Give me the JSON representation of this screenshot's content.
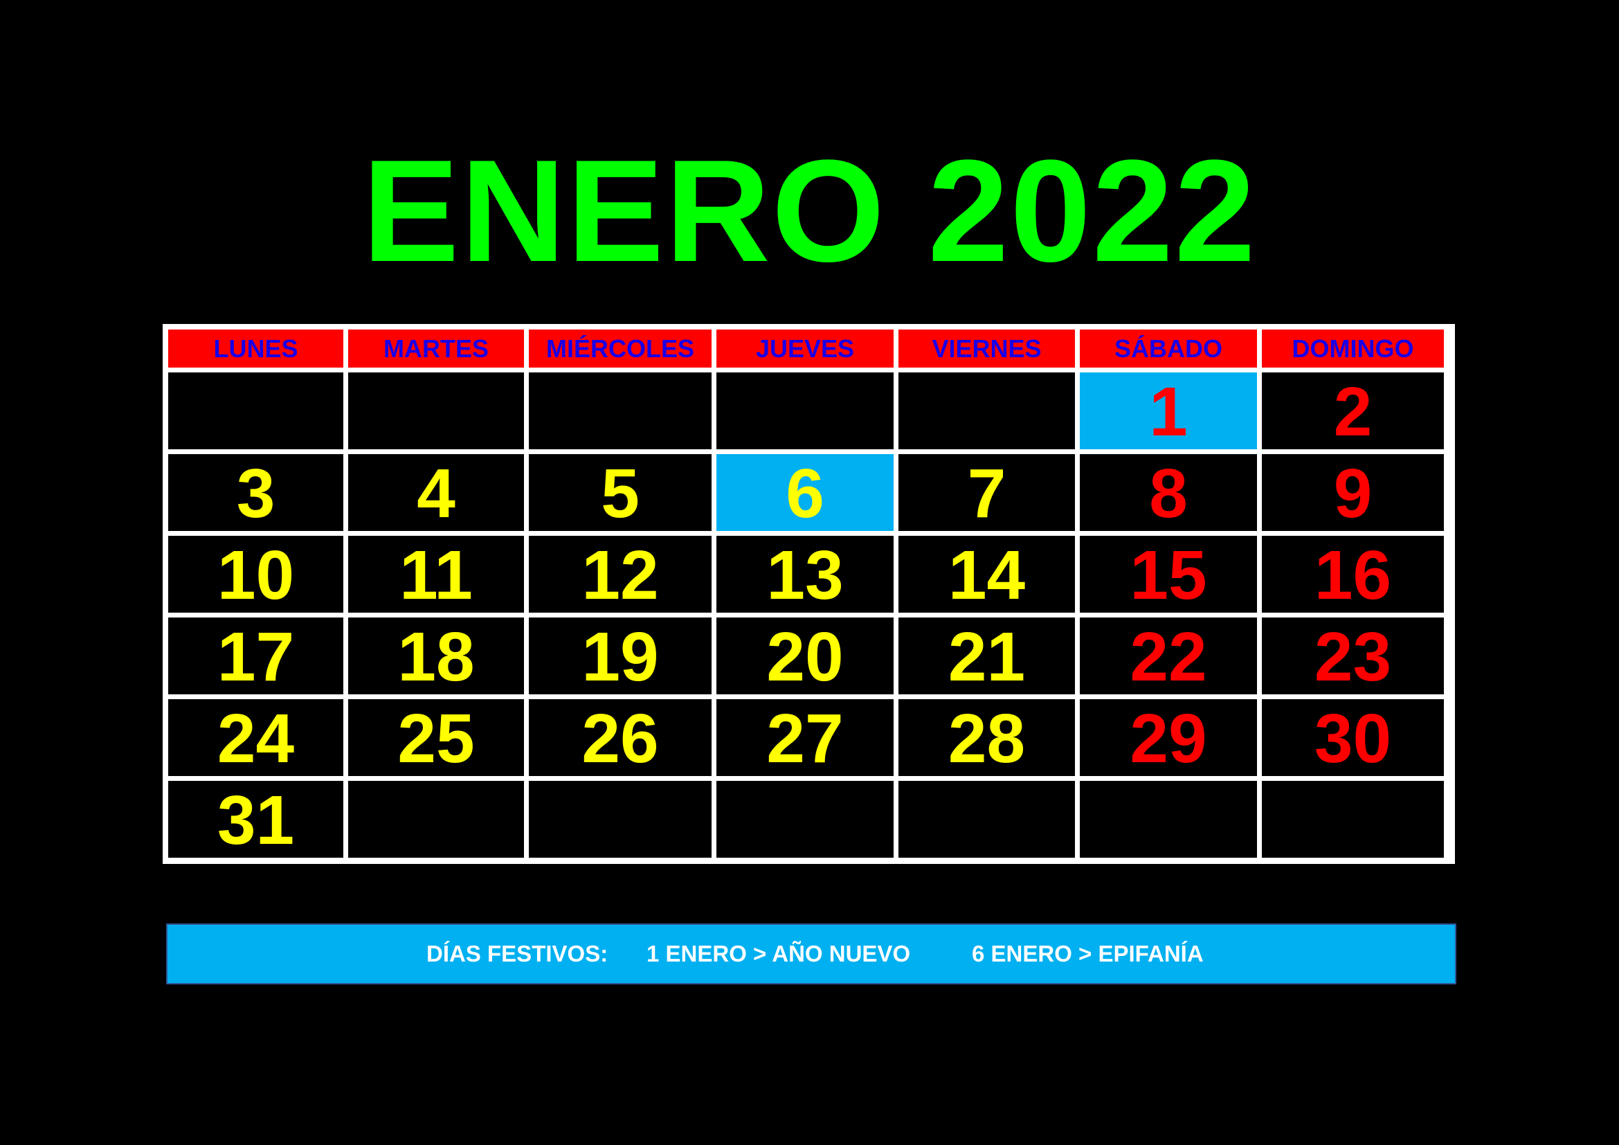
{
  "calendar": {
    "title": "ENERO 2022",
    "weekdays": [
      "LUNES",
      "MARTES",
      "MIÉRCOLES",
      "JUEVES",
      "VIERNES",
      "SÁBADO",
      "DOMINGO"
    ],
    "weeks": [
      [
        "",
        "",
        "",
        "",
        "",
        "1",
        "2"
      ],
      [
        "3",
        "4",
        "5",
        "6",
        "7",
        "8",
        "9"
      ],
      [
        "10",
        "11",
        "12",
        "13",
        "14",
        "15",
        "16"
      ],
      [
        "17",
        "18",
        "19",
        "20",
        "21",
        "22",
        "23"
      ],
      [
        "24",
        "25",
        "26",
        "27",
        "28",
        "29",
        "30"
      ],
      [
        "31",
        "",
        "",
        "",
        "",
        "",
        ""
      ]
    ],
    "highlighted_days": [
      "1",
      "6"
    ]
  },
  "holidays": {
    "label": "DÍAS FESTIVOS:",
    "items": [
      "1 ENERO > AÑO NUEVO",
      "6 ENERO > EPIFANÍA"
    ]
  },
  "colors": {
    "background": "#000000",
    "title": "#00ff00",
    "header_background": "#ff0000",
    "header_text": "#1a00e6",
    "weekday_number": "#ffff00",
    "weekend_number": "#ff0000",
    "holiday_highlight": "#00b0f0",
    "footer_background": "#00b0f0",
    "grid_lines": "#ffffff"
  }
}
